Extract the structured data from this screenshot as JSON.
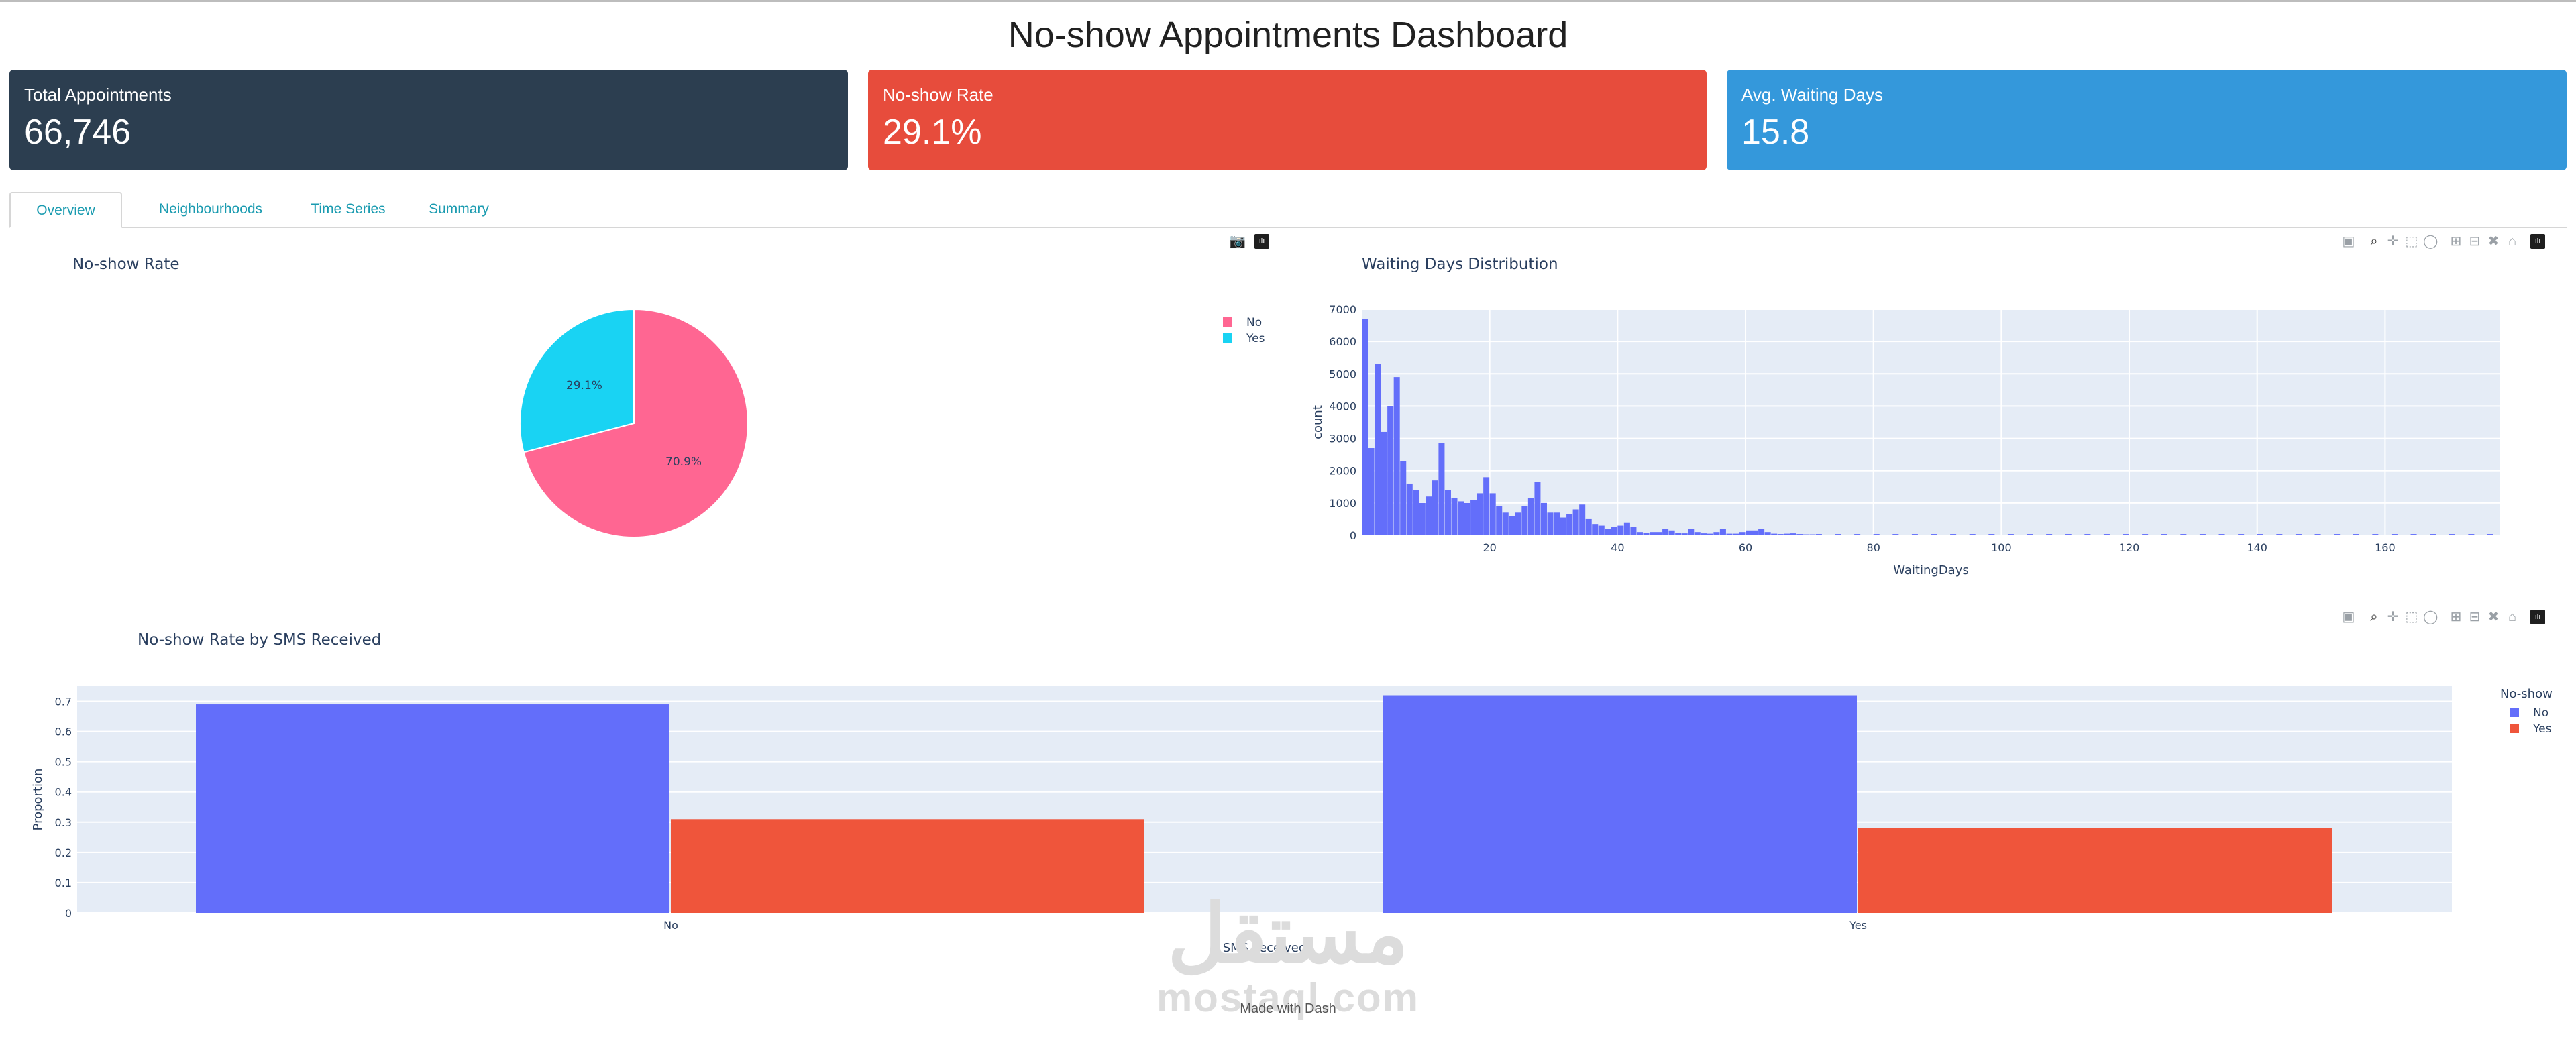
{
  "header": {
    "title": "No-show Appointments Dashboard"
  },
  "cards": [
    {
      "label": "Total Appointments",
      "value": "66,746",
      "color": "#2c3e50"
    },
    {
      "label": "No-show Rate",
      "value": "29.1%",
      "color": "#e74c3c"
    },
    {
      "label": "Avg. Waiting Days",
      "value": "15.8",
      "color": "#3498db"
    }
  ],
  "tabs": [
    {
      "label": "Overview",
      "active": true
    },
    {
      "label": "Neighbourhoods",
      "active": false
    },
    {
      "label": "Time Series",
      "active": false
    },
    {
      "label": "Summary",
      "active": false
    }
  ],
  "icons": [
    "camera-icon",
    "zoom-icon",
    "pan-icon",
    "box-select-icon",
    "lasso-icon",
    "zoom-in-icon",
    "zoom-out-icon",
    "autoscale-icon",
    "home-icon",
    "plotly-logo-icon"
  ],
  "chart_data": [
    {
      "type": "pie",
      "title": "No-show Rate",
      "labels": [
        "No",
        "Yes"
      ],
      "values": [
        70.9,
        29.1
      ],
      "text": [
        "70.9%",
        "29.1%"
      ],
      "colors": [
        "#ff6692",
        "#19d3f3"
      ],
      "legend": "right"
    },
    {
      "type": "bar",
      "subtype": "histogram",
      "title": "Waiting Days Distribution",
      "xlabel": "WaitingDays",
      "ylabel": "count",
      "xlim": [
        0,
        178
      ],
      "ylim": [
        0,
        7000
      ],
      "xticks": [
        20,
        40,
        60,
        80,
        100,
        120,
        140,
        160
      ],
      "yticks": [
        0,
        1000,
        2000,
        3000,
        4000,
        5000,
        6000,
        7000
      ],
      "color": "#636efa",
      "x": [
        0,
        1,
        2,
        3,
        4,
        5,
        6,
        7,
        8,
        9,
        10,
        11,
        12,
        13,
        14,
        15,
        16,
        17,
        18,
        19,
        20,
        21,
        22,
        23,
        24,
        25,
        26,
        27,
        28,
        29,
        30,
        31,
        32,
        33,
        34,
        35,
        36,
        37,
        38,
        39,
        40,
        41,
        42,
        43,
        44,
        45,
        46,
        47,
        48,
        49,
        50,
        51,
        52,
        53,
        54,
        55,
        56,
        57,
        58,
        59,
        60,
        61,
        62,
        63,
        64,
        65,
        66,
        67,
        68,
        69,
        70
      ],
      "values": [
        6700,
        2700,
        5300,
        3200,
        4000,
        4900,
        2300,
        1600,
        1400,
        1000,
        1200,
        1700,
        2850,
        1400,
        1150,
        1050,
        1000,
        1100,
        1300,
        1800,
        1300,
        900,
        700,
        600,
        700,
        900,
        1150,
        1650,
        1000,
        700,
        700,
        550,
        650,
        800,
        950,
        500,
        350,
        300,
        200,
        250,
        300,
        400,
        250,
        100,
        80,
        100,
        100,
        200,
        150,
        80,
        60,
        200,
        100,
        60,
        50,
        100,
        200,
        50,
        50,
        100,
        150,
        150,
        200,
        100,
        50,
        40,
        50,
        60,
        40,
        30,
        30
      ]
    },
    {
      "type": "bar",
      "title": "No-show Rate by SMS Received",
      "xlabel": "SMS_received",
      "ylabel": "Proportion",
      "categories": [
        "No",
        "Yes"
      ],
      "ylim": [
        0,
        0.75
      ],
      "yticks": [
        0,
        0.1,
        0.2,
        0.3,
        0.4,
        0.5,
        0.6,
        0.7
      ],
      "legend_title": "No-show",
      "legend": "top-right",
      "series": [
        {
          "name": "No",
          "values": [
            0.69,
            0.72
          ],
          "color": "#636efa"
        },
        {
          "name": "Yes",
          "values": [
            0.31,
            0.28
          ],
          "color": "#ef553b"
        }
      ]
    }
  ],
  "footer": {
    "text": "Made with Dash"
  },
  "watermark": {
    "arabic": "مستقل",
    "latin": "mostaql.com"
  }
}
